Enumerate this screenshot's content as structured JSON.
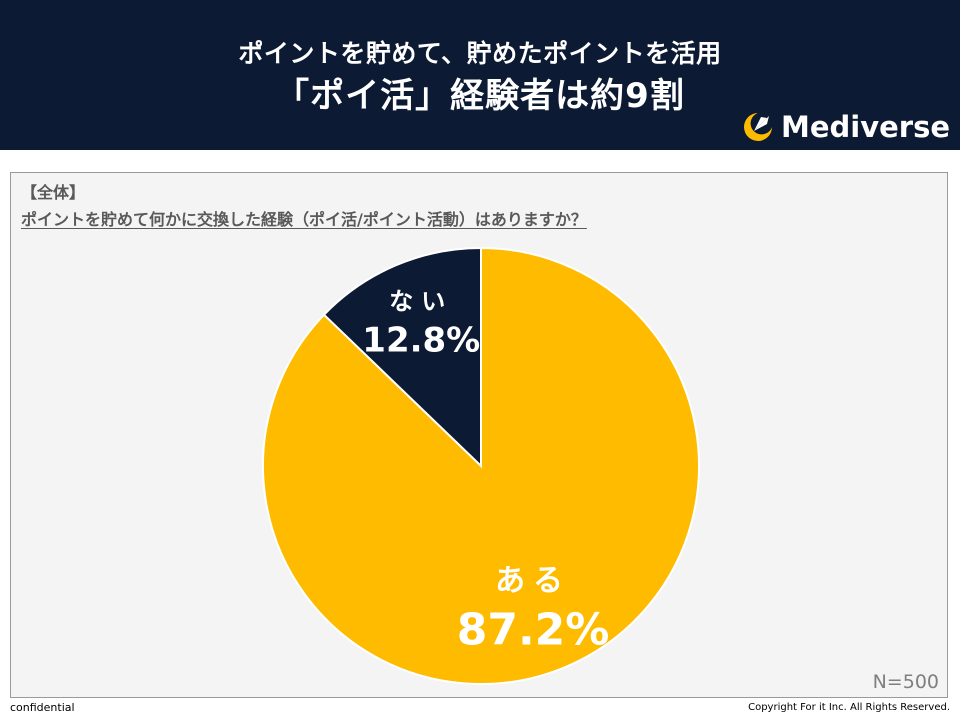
{
  "header": {
    "title_line1": "ポイントを貯めて、貯めたポイントを活用",
    "title_line2": "「ポイ活」経験者は約9割",
    "brand": "Mediverse",
    "brand_icon": "crescent-rocket-logo-icon"
  },
  "panel": {
    "tag": "【全体】",
    "question": "ポイントを貯めて何かに交換した経験（ポイ活/ポイント活動）はありますか？",
    "n_label": "N=500"
  },
  "chart_data": {
    "type": "pie",
    "title": "",
    "slices": [
      {
        "label": "ない",
        "value": 12.8,
        "value_label": "12.8%",
        "color": "#0d1a33"
      },
      {
        "label": "ある",
        "value": 87.2,
        "value_label": "87.2%",
        "color": "#ffbb00"
      }
    ],
    "start": "12 o'clock, clockwise from 'ない' counter-clockwise",
    "legend": "none"
  },
  "footer": {
    "left": "confidential",
    "right": "Copyright For it Inc. All Rights Reserved."
  },
  "colors": {
    "header_bg": "#0d1a33",
    "accent_yellow": "#ffbb00",
    "panel_bg": "#f4f4f4"
  }
}
